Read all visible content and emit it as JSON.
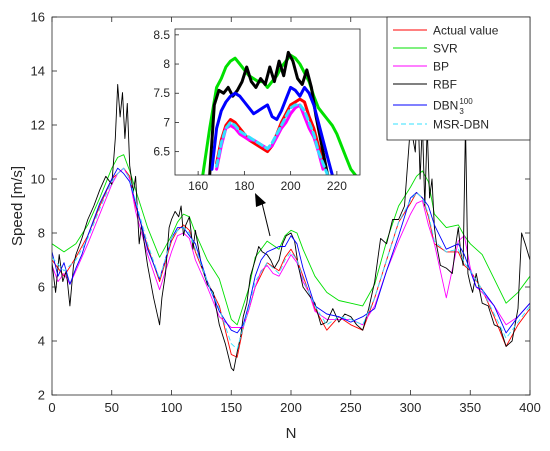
{
  "chart_data": {
    "type": "line",
    "xlabel": "N",
    "ylabel": "Speed [m/s]",
    "xlim": [
      0,
      400
    ],
    "ylim": [
      2,
      16
    ],
    "xticks": [
      0,
      50,
      100,
      150,
      200,
      250,
      300,
      350,
      400
    ],
    "yticks": [
      2,
      4,
      6,
      8,
      10,
      12,
      14,
      16
    ],
    "grid": false,
    "legend_position": "top-right",
    "series": [
      {
        "name": "Actual value",
        "legend_label": "Actual value",
        "color": "#ff0000",
        "x": [
          0,
          10,
          20,
          30,
          40,
          50,
          55,
          60,
          65,
          70,
          80,
          90,
          100,
          105,
          110,
          115,
          120,
          130,
          140,
          150,
          155,
          160,
          165,
          170,
          180,
          190,
          195,
          200,
          205,
          210,
          220,
          230,
          240,
          250,
          260,
          270,
          280,
          290,
          300,
          305,
          310,
          315,
          320,
          330,
          340,
          345,
          350,
          360,
          370,
          380,
          390,
          400
        ],
        "y": [
          7.0,
          6.4,
          7.1,
          7.9,
          9.0,
          10.0,
          10.2,
          10.4,
          10.1,
          9.0,
          7.5,
          6.2,
          7.7,
          8.1,
          8.3,
          8.1,
          7.3,
          6.2,
          5.3,
          3.5,
          3.4,
          4.5,
          5.2,
          6.0,
          6.9,
          6.6,
          7.1,
          7.4,
          7.0,
          6.4,
          5.2,
          4.4,
          4.9,
          4.6,
          4.4,
          5.6,
          7.0,
          8.4,
          9.1,
          9.5,
          9.3,
          8.6,
          7.6,
          7.3,
          7.3,
          6.8,
          6.6,
          5.9,
          4.9,
          3.8,
          4.6,
          5.2
        ]
      },
      {
        "name": "SVR",
        "legend_label": "SVR",
        "color": "#00e000",
        "x": [
          0,
          10,
          20,
          30,
          40,
          50,
          55,
          60,
          65,
          70,
          80,
          90,
          100,
          105,
          110,
          115,
          120,
          130,
          140,
          150,
          155,
          160,
          165,
          170,
          180,
          190,
          195,
          200,
          205,
          210,
          220,
          230,
          240,
          250,
          260,
          270,
          280,
          290,
          300,
          305,
          310,
          315,
          320,
          330,
          340,
          345,
          350,
          360,
          370,
          380,
          390,
          400
        ],
        "y": [
          7.6,
          7.3,
          7.6,
          8.3,
          9.3,
          10.4,
          10.8,
          10.9,
          10.3,
          9.6,
          8.2,
          7.1,
          7.9,
          8.4,
          8.7,
          8.6,
          8.0,
          7.0,
          6.3,
          4.8,
          4.6,
          5.3,
          6.0,
          7.1,
          7.7,
          7.4,
          7.9,
          8.1,
          8.0,
          7.4,
          6.4,
          5.8,
          5.5,
          5.4,
          5.3,
          6.1,
          7.7,
          9.0,
          9.7,
          10.1,
          10.3,
          9.9,
          8.7,
          8.2,
          8.3,
          7.9,
          7.6,
          7.2,
          6.3,
          5.4,
          5.8,
          6.4
        ]
      },
      {
        "name": "BP",
        "legend_label": "BP",
        "color": "#ff00ff",
        "x": [
          0,
          5,
          10,
          15,
          20,
          30,
          40,
          50,
          55,
          60,
          65,
          70,
          80,
          90,
          100,
          105,
          110,
          115,
          120,
          130,
          140,
          150,
          155,
          160,
          165,
          170,
          175,
          180,
          185,
          190,
          195,
          200,
          205,
          210,
          215,
          220,
          230,
          240,
          250,
          260,
          270,
          280,
          290,
          300,
          305,
          310,
          315,
          320,
          330,
          340,
          345,
          350,
          355,
          360,
          370,
          380,
          390,
          400
        ],
        "y": [
          6.8,
          6.2,
          6.5,
          6.1,
          6.6,
          7.6,
          8.7,
          9.8,
          10.2,
          10.4,
          10.0,
          8.8,
          7.2,
          5.9,
          7.3,
          7.9,
          8.0,
          7.8,
          7.0,
          6.0,
          4.9,
          4.5,
          4.5,
          4.5,
          5.2,
          6.0,
          6.6,
          6.8,
          6.5,
          6.4,
          6.8,
          7.2,
          6.9,
          6.2,
          5.8,
          5.1,
          4.8,
          4.8,
          4.8,
          4.6,
          5.3,
          6.6,
          7.7,
          8.7,
          9.1,
          9.2,
          8.3,
          7.6,
          5.6,
          7.7,
          7.9,
          6.7,
          6.0,
          5.8,
          5.3,
          4.6,
          4.9,
          5.4
        ]
      },
      {
        "name": "RBF",
        "legend_label": "RBF",
        "color": "#000000",
        "x": [
          0,
          3,
          6,
          9,
          12,
          15,
          18,
          20,
          25,
          30,
          35,
          40,
          45,
          50,
          53,
          55,
          57,
          59,
          61,
          63,
          65,
          68,
          70,
          73,
          75,
          80,
          85,
          90,
          92,
          95,
          98,
          100,
          103,
          106,
          108,
          110,
          112,
          115,
          118,
          120,
          125,
          130,
          135,
          140,
          145,
          150,
          152,
          155,
          158,
          160,
          163,
          166,
          170,
          173,
          176,
          180,
          183,
          186,
          190,
          193,
          196,
          200,
          203,
          206,
          210,
          215,
          220,
          225,
          230,
          235,
          240,
          245,
          250,
          255,
          260,
          265,
          270,
          275,
          280,
          285,
          290,
          295,
          298,
          300,
          302,
          304,
          306,
          308,
          310,
          312,
          314,
          316,
          318,
          320,
          322,
          325,
          330,
          335,
          338,
          340,
          342,
          344,
          346,
          348,
          350,
          352,
          355,
          360,
          365,
          370,
          375,
          380,
          385,
          390,
          393,
          396,
          400
        ],
        "y": [
          6.9,
          5.8,
          7.2,
          6.2,
          6.6,
          5.3,
          6.8,
          7.2,
          7.8,
          8.5,
          9.0,
          9.6,
          10.1,
          9.8,
          11.5,
          13.5,
          12.3,
          13.2,
          11.5,
          12.8,
          10.5,
          9.5,
          10.1,
          7.6,
          8.3,
          6.8,
          5.6,
          4.6,
          5.6,
          6.5,
          8.2,
          8.5,
          8.8,
          8.6,
          9.0,
          7.9,
          8.3,
          8.6,
          7.4,
          8.1,
          6.8,
          6.1,
          5.8,
          4.6,
          3.9,
          3.0,
          2.9,
          3.6,
          4.2,
          4.9,
          5.4,
          6.4,
          7.0,
          7.5,
          7.3,
          7.2,
          7.0,
          6.7,
          7.0,
          7.6,
          7.9,
          8.0,
          7.7,
          6.8,
          6.0,
          5.7,
          5.4,
          4.6,
          4.7,
          5.2,
          4.7,
          5.0,
          4.9,
          4.6,
          4.4,
          5.2,
          6.2,
          7.8,
          7.6,
          8.5,
          8.5,
          9.0,
          10.8,
          12.0,
          11.5,
          11.0,
          13.0,
          10.0,
          12.1,
          9.0,
          11.9,
          9.3,
          10.0,
          8.2,
          7.5,
          6.8,
          6.7,
          6.5,
          7.6,
          8.2,
          7.3,
          6.8,
          12.0,
          6.5,
          6.1,
          5.8,
          6.5,
          5.4,
          5.3,
          4.6,
          4.5,
          3.8,
          4.0,
          5.2,
          8.0,
          7.6,
          7.0
        ]
      },
      {
        "name": "DBN_3^100",
        "legend_label": "DBN",
        "legend_sub": "3",
        "legend_sup": "100",
        "color": "#0000ff",
        "x": [
          0,
          5,
          10,
          15,
          20,
          25,
          30,
          40,
          50,
          55,
          60,
          65,
          70,
          80,
          90,
          100,
          105,
          110,
          115,
          120,
          130,
          140,
          150,
          155,
          160,
          165,
          170,
          175,
          180,
          185,
          190,
          195,
          200,
          205,
          210,
          215,
          220,
          230,
          240,
          250,
          260,
          270,
          280,
          290,
          300,
          305,
          310,
          315,
          320,
          330,
          340,
          345,
          350,
          355,
          360,
          370,
          380,
          390,
          400
        ],
        "y": [
          7.3,
          6.4,
          6.9,
          6.1,
          6.7,
          7.2,
          7.9,
          9.1,
          10.0,
          10.4,
          10.2,
          9.9,
          9.1,
          7.4,
          6.3,
          7.8,
          8.2,
          8.2,
          7.9,
          7.6,
          6.2,
          5.1,
          4.4,
          4.3,
          4.6,
          5.4,
          6.4,
          7.0,
          7.3,
          7.4,
          7.5,
          7.5,
          7.9,
          7.6,
          6.7,
          6.0,
          5.3,
          5.0,
          4.9,
          4.7,
          4.9,
          5.2,
          6.6,
          7.9,
          9.3,
          9.5,
          9.3,
          9.0,
          8.3,
          7.4,
          7.6,
          7.2,
          6.6,
          6.0,
          5.9,
          5.3,
          4.3,
          4.9,
          5.4
        ]
      },
      {
        "name": "MSR-DBN",
        "legend_label": "MSR-DBN",
        "color": "#33e0ff",
        "dashed": true,
        "x": [
          0,
          10,
          20,
          30,
          40,
          50,
          55,
          60,
          65,
          70,
          80,
          90,
          100,
          105,
          110,
          115,
          120,
          130,
          140,
          150,
          155,
          160,
          165,
          170,
          180,
          190,
          195,
          200,
          205,
          210,
          220,
          230,
          240,
          250,
          260,
          270,
          280,
          290,
          300,
          305,
          310,
          315,
          320,
          330,
          340,
          345,
          350,
          360,
          370,
          380,
          390,
          400
        ],
        "y": [
          7.1,
          6.6,
          7.0,
          7.8,
          8.9,
          9.9,
          10.2,
          10.4,
          10.0,
          9.2,
          7.6,
          6.3,
          7.8,
          8.1,
          8.2,
          8.0,
          7.4,
          6.2,
          5.2,
          3.9,
          3.7,
          4.5,
          5.3,
          6.2,
          6.9,
          6.5,
          7.0,
          7.3,
          7.0,
          6.3,
          5.3,
          4.6,
          4.9,
          4.8,
          4.6,
          5.6,
          7.0,
          8.4,
          9.2,
          9.5,
          9.3,
          8.7,
          7.7,
          7.3,
          7.4,
          6.9,
          6.6,
          5.9,
          5.0,
          4.1,
          4.7,
          5.3
        ]
      }
    ],
    "inset": {
      "xlim": [
        150,
        230
      ],
      "ylim": [
        6.1,
        8.6
      ],
      "xticks": [
        160,
        180,
        200,
        220
      ],
      "yticks": [
        6.5,
        7,
        7.5,
        8,
        8.5
      ],
      "series": [
        {
          "name": "Actual value",
          "color": "#ff0000",
          "x": [
            168,
            170,
            172,
            174,
            176,
            178,
            180,
            182,
            184,
            186,
            188,
            190,
            192,
            194,
            196,
            198,
            200,
            202,
            204,
            206,
            208,
            210,
            212,
            214,
            216
          ],
          "y": [
            6.3,
            6.7,
            6.95,
            7.05,
            7.0,
            6.9,
            6.8,
            6.7,
            6.65,
            6.6,
            6.55,
            6.5,
            6.6,
            6.8,
            7.0,
            7.15,
            7.3,
            7.35,
            7.4,
            7.35,
            7.1,
            6.9,
            6.6,
            6.4,
            6.1
          ]
        },
        {
          "name": "SVR",
          "color": "#00e000",
          "x": [
            162,
            165,
            168,
            170,
            172,
            174,
            176,
            178,
            180,
            182,
            184,
            186,
            188,
            190,
            192,
            194,
            196,
            198,
            200,
            202,
            204,
            206,
            208,
            210,
            212,
            214,
            216,
            218,
            220,
            222,
            224,
            226,
            228
          ],
          "y": [
            6.1,
            6.9,
            7.6,
            7.75,
            7.95,
            8.05,
            8.1,
            8.0,
            7.9,
            7.8,
            7.75,
            7.7,
            7.7,
            7.6,
            7.7,
            7.8,
            7.95,
            8.05,
            8.15,
            8.1,
            8.0,
            7.85,
            7.7,
            7.45,
            7.25,
            7.15,
            7.05,
            6.95,
            6.8,
            6.6,
            6.4,
            6.2,
            6.1
          ]
        },
        {
          "name": "BP",
          "color": "#ff00ff",
          "x": [
            168,
            170,
            172,
            174,
            176,
            178,
            180,
            182,
            184,
            186,
            188,
            190,
            192,
            194,
            196,
            198,
            200,
            202,
            204,
            206,
            208,
            210,
            212,
            214
          ],
          "y": [
            6.2,
            6.6,
            6.9,
            6.95,
            6.9,
            6.8,
            6.75,
            6.7,
            6.7,
            6.65,
            6.6,
            6.55,
            6.6,
            6.75,
            6.9,
            7.0,
            7.15,
            7.25,
            7.3,
            7.1,
            6.9,
            6.75,
            6.5,
            6.2
          ]
        },
        {
          "name": "RBF",
          "color": "#000000",
          "x": [
            165,
            167,
            169,
            171,
            173,
            175,
            177,
            179,
            181,
            183,
            185,
            187,
            189,
            191,
            193,
            195,
            197,
            199,
            201,
            203,
            205,
            207,
            209,
            211,
            213,
            215,
            216
          ],
          "y": [
            6.1,
            7.3,
            7.55,
            7.5,
            7.6,
            7.45,
            7.55,
            7.7,
            7.95,
            7.7,
            7.6,
            7.75,
            7.65,
            7.95,
            7.7,
            8.05,
            7.8,
            8.2,
            8.05,
            7.75,
            7.65,
            7.9,
            7.6,
            7.1,
            6.7,
            6.3,
            6.1
          ]
        },
        {
          "name": "DBN_3^100",
          "color": "#0000ff",
          "x": [
            166,
            168,
            170,
            172,
            174,
            176,
            178,
            180,
            182,
            184,
            186,
            188,
            190,
            192,
            194,
            196,
            198,
            200,
            202,
            204,
            206,
            208,
            210,
            212,
            214,
            216,
            218
          ],
          "y": [
            6.2,
            6.9,
            7.2,
            7.35,
            7.45,
            7.5,
            7.45,
            7.35,
            7.25,
            7.15,
            7.2,
            7.25,
            7.3,
            7.1,
            7.05,
            7.2,
            7.4,
            7.6,
            7.55,
            7.45,
            7.6,
            7.5,
            7.3,
            7.0,
            6.7,
            6.4,
            6.1
          ]
        },
        {
          "name": "MSR-DBN",
          "color": "#33e0ff",
          "dashed": true,
          "x": [
            168,
            170,
            172,
            174,
            176,
            178,
            180,
            182,
            184,
            186,
            188,
            190,
            192,
            194,
            196,
            198,
            200,
            202,
            204,
            206,
            208,
            210,
            212,
            214,
            216
          ],
          "y": [
            6.25,
            6.65,
            6.9,
            7.0,
            6.95,
            6.85,
            6.8,
            6.75,
            6.7,
            6.65,
            6.6,
            6.55,
            6.65,
            6.8,
            6.95,
            7.1,
            7.25,
            7.3,
            7.3,
            7.2,
            7.0,
            6.8,
            6.5,
            6.3,
            6.1
          ]
        }
      ]
    }
  }
}
